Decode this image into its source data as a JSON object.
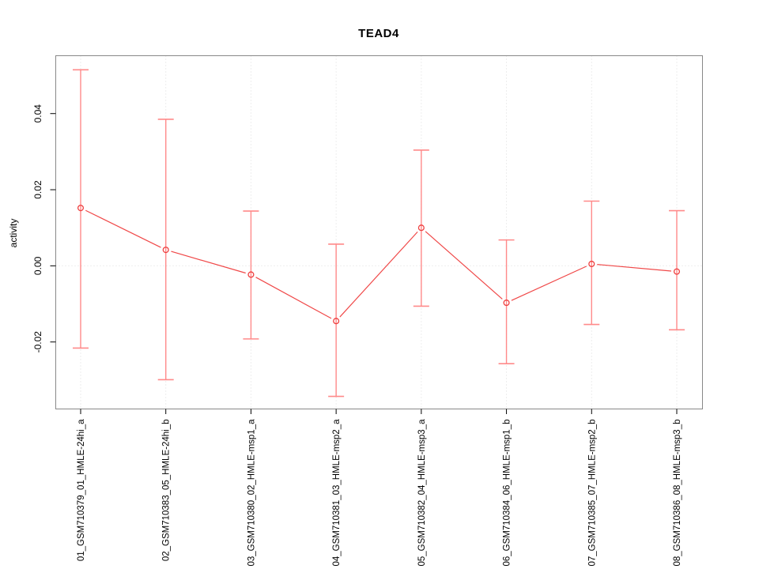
{
  "chart_data": {
    "type": "line",
    "title": "TEAD4",
    "xlabel": "",
    "ylabel": "activity",
    "categories": [
      "01_GSM710379_01_HMLE-24hi_a",
      "02_GSM710383_05_HMLE-24hi_b",
      "03_GSM710380_02_HMLE-msp1_a",
      "04_GSM710381_03_HMLE-msp2_a",
      "05_GSM710382_04_HMLE-msp3_a",
      "06_GSM710384_06_HMLE-msp1_b",
      "07_GSM710385_07_HMLE-msp2_b",
      "08_GSM710386_08_HMLE-msp3_b"
    ],
    "series": [
      {
        "name": "activity",
        "values": [
          0.0152,
          0.0042,
          -0.0023,
          -0.0145,
          0.01,
          -0.0097,
          0.0005,
          -0.0015
        ],
        "upper": [
          0.0515,
          0.0385,
          0.0144,
          0.0057,
          0.0304,
          0.0068,
          0.017,
          0.0145
        ],
        "lower": [
          -0.0216,
          -0.0299,
          -0.0192,
          -0.0343,
          -0.0106,
          -0.0257,
          -0.0154,
          -0.0168
        ]
      }
    ],
    "yticks": [
      -0.02,
      0,
      0.02,
      0.04
    ],
    "ytick_labels": [
      "-0.02",
      "0.00",
      "0.02",
      "0.04"
    ],
    "ylim": [
      -0.0376,
      0.0552
    ],
    "grid": {
      "vertical_dotted": true,
      "zero_line_dotted": true,
      "horizontal_gridlines": false
    },
    "legend_position": "none",
    "marker": "open-circle",
    "colors": {
      "series_line": "#f04848",
      "point_outline": "#ef4040",
      "error_bar": "#ff8a8a",
      "grid_line": "#dcdcdc",
      "plot_border": "#888888",
      "axis_tick": "#000000",
      "text": "#000000",
      "background": "#ffffff"
    }
  }
}
